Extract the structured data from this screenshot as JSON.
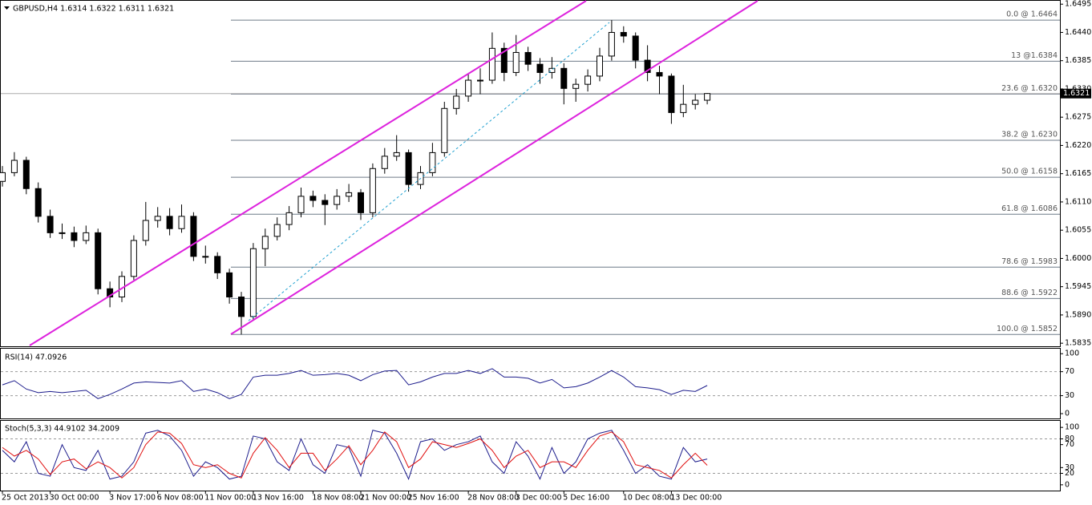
{
  "chart_data": [
    {
      "type": "candlestick",
      "title": "GBPUSD,H4  1.6314 1.6322 1.6311 1.6321",
      "categories": [
        "25 Oct 2013",
        null,
        null,
        null,
        "30 Oct 00:00",
        null,
        null,
        null,
        null,
        "3 Nov 17:00",
        null,
        null,
        null,
        "6 Nov 08:00",
        null,
        null,
        null,
        "11 Nov 00:00",
        null,
        null,
        null,
        "13 Nov 16:00",
        null,
        null,
        null,
        null,
        "18 Nov 08:00",
        null,
        null,
        null,
        "21 Nov 00:00",
        null,
        null,
        null,
        "25 Nov 16:00",
        null,
        null,
        null,
        null,
        "28 Nov 08:00",
        null,
        null,
        null,
        "3 Dec 00:00",
        null,
        null,
        null,
        "5 Dec 16:00",
        null,
        null,
        null,
        null,
        "10 Dec 08:00",
        null,
        null,
        null,
        "13 Dec 00:00",
        null,
        null,
        null
      ],
      "open": [
        1.615,
        1.6167,
        1.6191,
        1.6136,
        1.6082,
        1.605,
        1.605,
        1.6035,
        1.605,
        1.5941,
        1.5925,
        1.5965,
        1.6035,
        1.6074,
        1.6082,
        1.6058,
        1.6082,
        1.6004,
        1.6004,
        1.5972,
        1.5925,
        1.5887,
        1.6019,
        1.6043,
        1.6066,
        1.6089,
        1.6121,
        1.6113,
        1.6105,
        1.6121,
        1.6128,
        1.6089,
        1.6175,
        1.6199,
        1.6206,
        1.6144,
        1.6167,
        1.6206,
        1.6292,
        1.6316,
        1.6347,
        1.6347,
        1.6409,
        1.6362,
        1.6401,
        1.6378,
        1.6362,
        1.637,
        1.6331,
        1.6339,
        1.6355,
        1.6394,
        1.644,
        1.6433,
        1.6386,
        1.6362,
        1.6355,
        1.6284,
        1.63,
        1.6308
      ],
      "high": [
        1.618,
        1.6207,
        1.6198,
        1.6148,
        1.6095,
        1.6068,
        1.6062,
        1.6064,
        1.6058,
        1.5955,
        1.5975,
        1.6045,
        1.611,
        1.61,
        1.6098,
        1.6105,
        1.609,
        1.6025,
        1.6012,
        1.598,
        1.5935,
        1.603,
        1.6058,
        1.608,
        1.6102,
        1.6138,
        1.6132,
        1.6125,
        1.6135,
        1.6145,
        1.6135,
        1.6185,
        1.6215,
        1.624,
        1.6212,
        1.618,
        1.6225,
        1.6305,
        1.633,
        1.636,
        1.637,
        1.644,
        1.642,
        1.6435,
        1.6412,
        1.639,
        1.6392,
        1.638,
        1.635,
        1.6368,
        1.641,
        1.6464,
        1.6452,
        1.644,
        1.6415,
        1.6375,
        1.636,
        1.6338,
        1.632,
        1.6322
      ],
      "low": [
        1.614,
        1.616,
        1.6125,
        1.607,
        1.604,
        1.6038,
        1.6022,
        1.6028,
        1.593,
        1.5905,
        1.5915,
        1.5958,
        1.6025,
        1.606,
        1.6045,
        1.605,
        1.5995,
        1.599,
        1.596,
        1.5912,
        1.5852,
        1.588,
        1.5985,
        1.6035,
        1.6055,
        1.608,
        1.61,
        1.6065,
        1.6095,
        1.611,
        1.6075,
        1.608,
        1.6165,
        1.619,
        1.613,
        1.6135,
        1.616,
        1.6198,
        1.628,
        1.6305,
        1.632,
        1.634,
        1.6345,
        1.6355,
        1.6365,
        1.634,
        1.635,
        1.63,
        1.6305,
        1.6325,
        1.6345,
        1.6385,
        1.642,
        1.637,
        1.6345,
        1.632,
        1.6262,
        1.6275,
        1.629,
        1.63
      ],
      "close": [
        1.6167,
        1.6191,
        1.6136,
        1.6082,
        1.605,
        1.605,
        1.6035,
        1.605,
        1.5941,
        1.5925,
        1.5965,
        1.6035,
        1.6074,
        1.6082,
        1.6058,
        1.6082,
        1.6004,
        1.6004,
        1.5972,
        1.5925,
        1.5887,
        1.6019,
        1.6043,
        1.6066,
        1.6089,
        1.6121,
        1.6113,
        1.6105,
        1.6121,
        1.6128,
        1.6089,
        1.6175,
        1.6199,
        1.6206,
        1.6144,
        1.6167,
        1.6206,
        1.6292,
        1.6316,
        1.6347,
        1.6347,
        1.6409,
        1.6362,
        1.6401,
        1.6378,
        1.6362,
        1.637,
        1.6331,
        1.6339,
        1.6355,
        1.6394,
        1.644,
        1.6433,
        1.6386,
        1.6362,
        1.6355,
        1.6284,
        1.63,
        1.6308,
        1.6321
      ],
      "ylim": [
        1.5829,
        1.65
      ],
      "yticks": [
        1.6495,
        {
          "value": 1.644,
          "label": "1.6440"
        },
        1.6385,
        {
          "value": 1.633,
          "label": "1.6330"
        },
        1.6275,
        {
          "value": 1.622,
          "label": "1.6220"
        },
        1.6165,
        {
          "value": 1.611,
          "label": "1.6110"
        },
        1.6055,
        {
          "value": 1.6,
          "label": "1.6000"
        },
        1.5945,
        {
          "value": 1.589,
          "label": "1.5890"
        },
        1.5835
      ],
      "fib_levels": [
        {
          "value": 1.6464,
          "label": "0.0 @ 1.6464"
        },
        {
          "value": 1.6384,
          "label": "13 @1.6384"
        },
        {
          "value": 1.632,
          "label": "23.6 @ 1.6320"
        },
        {
          "value": 1.623,
          "label": "38.2 @ 1.6230"
        },
        {
          "value": 1.6158,
          "label": "50.0 @ 1.6158"
        },
        {
          "value": 1.6086,
          "label": "61.8 @ 1.6086"
        },
        {
          "value": 1.5983,
          "label": "78.6 @ 1.5983"
        },
        {
          "value": 1.5922,
          "label": "88.6 @ 1.5922"
        },
        {
          "value": 1.5852,
          "label": "100.0 @ 1.5852"
        }
      ],
      "last_price": 1.6321
    },
    {
      "type": "line",
      "title": "RSI(14) 47.0926",
      "series": [
        {
          "color": "#1c1c8c",
          "values": [
            48,
            55,
            41,
            35,
            37,
            35,
            37,
            39,
            25,
            32,
            41,
            51,
            53,
            52,
            51,
            55,
            37,
            41,
            35,
            25,
            32,
            61,
            64,
            64,
            67,
            72,
            64,
            65,
            67,
            64,
            55,
            65,
            71,
            72,
            48,
            53,
            61,
            67,
            67,
            72,
            67,
            75,
            61,
            61,
            59,
            51,
            57,
            43,
            45,
            51,
            61,
            72,
            61,
            45,
            43,
            40,
            32,
            39,
            37,
            47
          ]
        }
      ],
      "ylim": [
        -8,
        107
      ],
      "yticks": [
        100,
        70,
        30,
        0
      ],
      "levels": [
        30,
        70
      ]
    },
    {
      "type": "line",
      "title": "Stoch(5,3,3) 44.9102 34.2009",
      "series": [
        {
          "color": "#1c1c8c",
          "values": [
            60,
            40,
            75,
            20,
            15,
            70,
            30,
            25,
            60,
            10,
            15,
            40,
            90,
            95,
            85,
            60,
            15,
            40,
            30,
            10,
            15,
            85,
            80,
            40,
            25,
            80,
            35,
            20,
            70,
            65,
            15,
            95,
            90,
            55,
            10,
            75,
            80,
            60,
            70,
            75,
            85,
            40,
            20,
            75,
            50,
            10,
            65,
            20,
            40,
            80,
            90,
            95,
            60,
            20,
            35,
            15,
            10,
            65,
            40,
            45
          ]
        },
        {
          "color": "#e01010",
          "values": [
            65,
            50,
            60,
            45,
            18,
            40,
            45,
            28,
            40,
            30,
            12,
            30,
            70,
            92,
            90,
            72,
            35,
            30,
            35,
            20,
            12,
            55,
            82,
            60,
            30,
            55,
            55,
            25,
            45,
            68,
            35,
            60,
            92,
            75,
            30,
            45,
            75,
            70,
            65,
            72,
            80,
            60,
            30,
            50,
            60,
            30,
            40,
            40,
            30,
            60,
            85,
            92,
            75,
            35,
            30,
            25,
            12,
            35,
            55,
            34
          ]
        }
      ],
      "ylim": [
        -10,
        110
      ],
      "yticks": [
        100,
        80,
        70,
        30,
        20,
        0
      ],
      "levels": [
        20,
        80
      ]
    }
  ]
}
